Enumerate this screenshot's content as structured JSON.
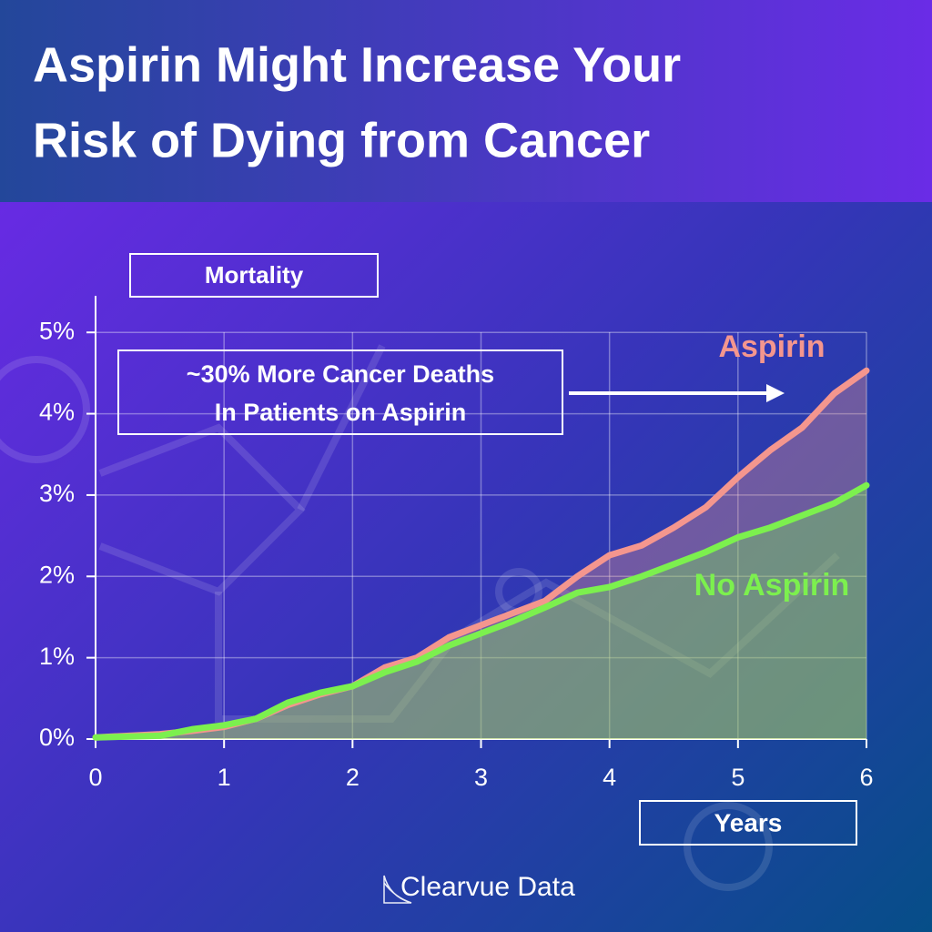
{
  "chart_data": {
    "type": "line",
    "title_lines": [
      "Aspirin Might Increase Your",
      "Risk of Dying from Cancer"
    ],
    "y_label": "Mortality",
    "x_label": "Years",
    "annotation_lines": [
      "~30% More Cancer Deaths",
      "In Patients on Aspirin"
    ],
    "brand": "Clearvue Data",
    "x": [
      0,
      0.5,
      0.75,
      1,
      1.25,
      1.5,
      1.75,
      2,
      2.25,
      2.5,
      2.75,
      3,
      3.25,
      3.5,
      3.75,
      4,
      4.25,
      4.5,
      4.75,
      5,
      5.25,
      5.5,
      5.75,
      6
    ],
    "series": [
      {
        "name": "Aspirin",
        "color": "#f4968e",
        "values": [
          0.02,
          0.06,
          0.1,
          0.15,
          0.25,
          0.42,
          0.55,
          0.65,
          0.88,
          1.0,
          1.25,
          1.4,
          1.55,
          1.7,
          2.0,
          2.26,
          2.38,
          2.6,
          2.85,
          3.22,
          3.55,
          3.83,
          4.25,
          4.53
        ]
      },
      {
        "name": "No Aspirin",
        "color": "#7cf04e",
        "values": [
          0.02,
          0.04,
          0.12,
          0.17,
          0.25,
          0.45,
          0.57,
          0.65,
          0.82,
          0.95,
          1.15,
          1.3,
          1.45,
          1.62,
          1.8,
          1.87,
          2.0,
          2.15,
          2.3,
          2.48,
          2.6,
          2.75,
          2.9,
          3.12
        ]
      }
    ],
    "xlim": [
      0,
      6
    ],
    "ylim": [
      0,
      5.45
    ],
    "xticks": [
      0,
      1,
      2,
      3,
      4,
      5,
      6
    ],
    "yticks": [
      {
        "value": 0,
        "label": "0%"
      },
      {
        "value": 1,
        "label": "1%"
      },
      {
        "value": 2,
        "label": "2%"
      },
      {
        "value": 3,
        "label": "3%"
      },
      {
        "value": 4,
        "label": "4%"
      },
      {
        "value": 5,
        "label": "5%"
      }
    ],
    "grid": true
  }
}
